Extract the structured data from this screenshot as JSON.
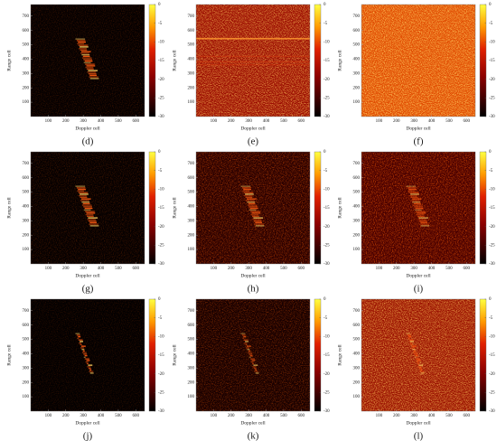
{
  "figure": {
    "x_label": "Doppler cell",
    "y_label": "Range cell",
    "x_range": [
      0,
      650
    ],
    "y_range": [
      0,
      780
    ],
    "x_ticks": [
      100,
      200,
      300,
      400,
      500,
      600
    ],
    "y_ticks": [
      100,
      200,
      300,
      400,
      500,
      600,
      700
    ],
    "colorbar_range": [
      -30,
      0
    ],
    "colorbar_ticks": [
      0,
      -5,
      -10,
      -15,
      -20,
      -25,
      -30
    ],
    "panels": [
      {
        "label": "(d)"
      },
      {
        "label": "(e)"
      },
      {
        "label": "(f)"
      },
      {
        "label": "(g)"
      },
      {
        "label": "(h)"
      },
      {
        "label": "(i)"
      },
      {
        "label": "(j)"
      },
      {
        "label": "(k)"
      },
      {
        "label": "(l)"
      }
    ]
  }
}
